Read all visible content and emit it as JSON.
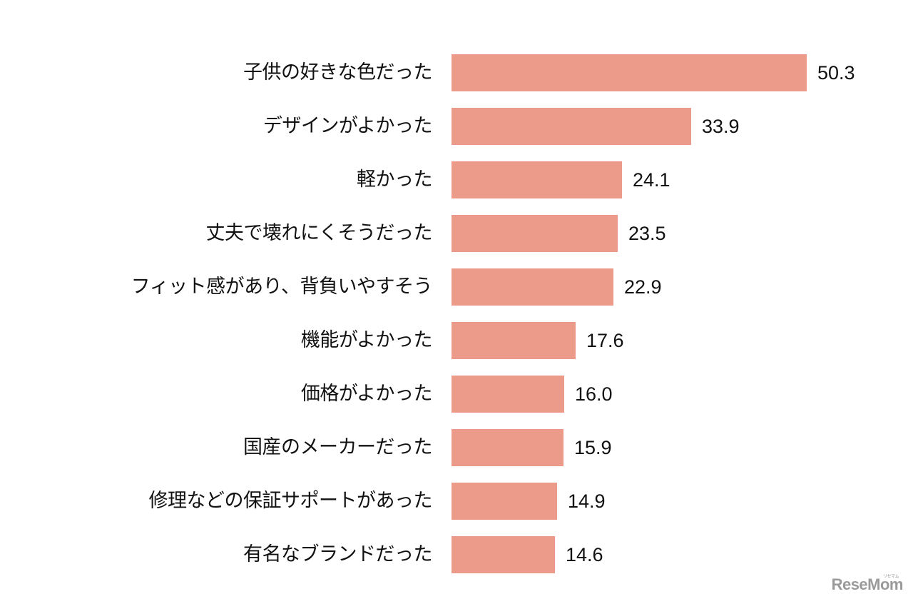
{
  "chart_data": {
    "type": "bar",
    "orientation": "horizontal",
    "title": "",
    "xlabel": "",
    "ylabel": "",
    "unit": "%",
    "xlim": [
      0,
      50.3
    ],
    "grid": false,
    "legend": null,
    "bar_color": "#ec9b8a",
    "categories": [
      "子供の好きな色だった",
      "デザインがよかった",
      "軽かった",
      "丈夫で壊れにくそうだった",
      "フィット感があり、背負いやすそう",
      "機能がよかった",
      "価格がよかった",
      "国産のメーカーだった",
      "修理などの保証サポートがあった",
      "有名なブランドだった"
    ],
    "values": [
      50.3,
      33.9,
      24.1,
      23.5,
      22.9,
      17.6,
      16.0,
      15.9,
      14.9,
      14.6
    ],
    "value_labels": [
      "50.3",
      "33.9",
      "24.1",
      "23.5",
      "22.9",
      "17.6",
      "16.0",
      "15.9",
      "14.9",
      "14.6"
    ]
  },
  "watermark": {
    "text": "ReseMom",
    "sub": "リセマム"
  }
}
